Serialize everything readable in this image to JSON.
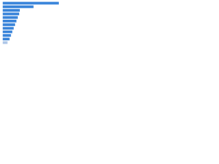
{
  "chart_data": {
    "type": "bar",
    "orientation": "horizontal",
    "categories": [
      null,
      null,
      null,
      null,
      null,
      null,
      null,
      null,
      null,
      null,
      null,
      null
    ],
    "values": [
      82,
      45,
      25,
      24,
      22,
      20,
      18,
      16,
      14,
      12,
      10,
      7
    ],
    "colors": [
      "#2f7ed8",
      "#2f7ed8",
      "#2f7ed8",
      "#2f7ed8",
      "#2f7ed8",
      "#2f7ed8",
      "#2f7ed8",
      "#2f7ed8",
      "#2f7ed8",
      "#2f7ed8",
      "#2f7ed8",
      "#a9c3e6"
    ],
    "xlim": [
      0,
      100
    ],
    "grid": false
  }
}
